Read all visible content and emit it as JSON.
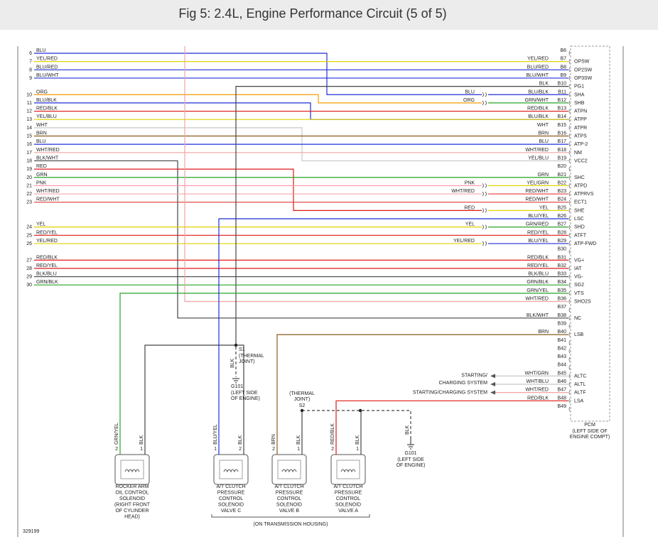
{
  "header": {
    "title": "Fig 5: 2.4L, Engine Performance Circuit (5 of 5)"
  },
  "left_wires": [
    {
      "number": "6",
      "color": "BLU"
    },
    {
      "number": "7",
      "color": "YEL/RED"
    },
    {
      "number": "8",
      "color": "BLU/RED"
    },
    {
      "number": "9",
      "color": "BLU/WHT"
    },
    {
      "number": "10",
      "color": "ORG"
    },
    {
      "number": "11",
      "color": "BLU/BLK"
    },
    {
      "number": "12",
      "color": "RED/BLK"
    },
    {
      "number": "13",
      "color": "YEL/BLU"
    },
    {
      "number": "14",
      "color": "WHT"
    },
    {
      "number": "15",
      "color": "BRN"
    },
    {
      "number": "16",
      "color": "BLU"
    },
    {
      "number": "17",
      "color": "WHT/RED"
    },
    {
      "number": "18",
      "color": "BLK/WHT"
    },
    {
      "number": "19",
      "color": "RED"
    },
    {
      "number": "20",
      "color": "GRN"
    },
    {
      "number": "21",
      "color": "PNK"
    },
    {
      "number": "22",
      "color": "WHT/RED"
    },
    {
      "number": "23",
      "color": "RED/WHT"
    },
    {
      "number": "24",
      "color": "YEL"
    },
    {
      "number": "25",
      "color": "RED/YEL"
    },
    {
      "number": "26",
      "color": "YEL/RED"
    },
    {
      "number": "27",
      "color": "RED/BLK"
    },
    {
      "number": "28",
      "color": "RED/YEL"
    },
    {
      "number": "29",
      "color": "BLK/BLU"
    },
    {
      "number": "30",
      "color": "GRN/BLK"
    }
  ],
  "splice_labels": [
    "BLU",
    "ORG",
    "PNK",
    "WHT/RED",
    "RED",
    "YEL",
    "YEL/RED"
  ],
  "pcm": {
    "name": "PCM",
    "location": [
      "(LEFT SIDE OF",
      "ENGINE COMPT)"
    ],
    "pins": [
      {
        "pin": "B6"
      },
      {
        "pin": "B7",
        "wire": "YEL/RED",
        "function": "OPSW"
      },
      {
        "pin": "B8",
        "wire": "BLU/RED",
        "function": "OP2SW"
      },
      {
        "pin": "B9",
        "wire": "BLU/WHT",
        "function": "OP3SW"
      },
      {
        "pin": "B10",
        "wire": "BLK",
        "function": "PG1"
      },
      {
        "pin": "B11",
        "wire": "BLU/BLK",
        "function": "SHA"
      },
      {
        "pin": "B12",
        "wire": "GRN/WHT",
        "function": "SHB"
      },
      {
        "pin": "B13",
        "wire": "RED/BLK",
        "function": "ATPN"
      },
      {
        "pin": "B14",
        "wire": "BLU/BLK",
        "function": "ATPP"
      },
      {
        "pin": "B15",
        "wire": "WHT",
        "function": "ATPR"
      },
      {
        "pin": "B16",
        "wire": "BRN",
        "function": "ATPS"
      },
      {
        "pin": "B17",
        "wire": "BLU",
        "function": "ATP-2"
      },
      {
        "pin": "B18",
        "wire": "WHT/RED",
        "function": "NM"
      },
      {
        "pin": "B19",
        "wire": "YEL/BLU",
        "function": "VCC2"
      },
      {
        "pin": "B20"
      },
      {
        "pin": "B21",
        "wire": "GRN",
        "function": "SHC"
      },
      {
        "pin": "B22",
        "wire": "YEL/GRN",
        "function": "ATPD"
      },
      {
        "pin": "B23",
        "wire": "RED/WHT",
        "function": "ATPRVS"
      },
      {
        "pin": "B24",
        "wire": "RED/WHT",
        "function": "ECT1"
      },
      {
        "pin": "B25",
        "wire": "YEL",
        "function": "SHE"
      },
      {
        "pin": "B26",
        "wire": "BLU/YEL",
        "function": "LSC"
      },
      {
        "pin": "B27",
        "wire": "GRN/RED",
        "function": "SHD"
      },
      {
        "pin": "B28",
        "wire": "RED/YEL",
        "function": "ATFT"
      },
      {
        "pin": "B29",
        "wire": "BLU/YEL",
        "function": "ATP-FWD"
      },
      {
        "pin": "B30"
      },
      {
        "pin": "B31",
        "wire": "RED/BLK",
        "function": "VG+"
      },
      {
        "pin": "B32",
        "wire": "RED/YEL",
        "function": "IAT"
      },
      {
        "pin": "B33",
        "wire": "BLK/BLU",
        "function": "VG-"
      },
      {
        "pin": "B34",
        "wire": "GRN/BLK",
        "function": "SG2"
      },
      {
        "pin": "B35",
        "wire": "GRN/YEL",
        "function": "VTS"
      },
      {
        "pin": "B36",
        "wire": "WHT/RED",
        "function": "SHO2S"
      },
      {
        "pin": "B37"
      },
      {
        "pin": "B38",
        "wire": "BLK/WHT",
        "function": "NC"
      },
      {
        "pin": "B39"
      },
      {
        "pin": "B40",
        "wire": "BRN",
        "function": "LSB"
      },
      {
        "pin": "B41"
      },
      {
        "pin": "B42"
      },
      {
        "pin": "B43"
      },
      {
        "pin": "B44"
      },
      {
        "pin": "B45",
        "wire": "WHT/GRN",
        "function": "ALTC"
      },
      {
        "pin": "B46",
        "wire": "WHT/BLU",
        "function": "ALTL"
      },
      {
        "pin": "B47",
        "wire": "WHT/RED",
        "function": "ALTF"
      },
      {
        "pin": "B48",
        "wire": "RED/BLK",
        "function": "LSA"
      },
      {
        "pin": "B49"
      }
    ]
  },
  "external": [
    [
      "STARTING/",
      "CHARGING SYSTEM"
    ],
    [
      "STARTING/CHARGING SYSTEM"
    ]
  ],
  "s1": {
    "name": "S1",
    "note": [
      "(THERMAL",
      "JOINT)"
    ],
    "ground_wire": "BLK",
    "ground": "G101",
    "ground_location": [
      "(LEFT SIDE",
      "OF ENGINE)"
    ]
  },
  "s2": {
    "name": "S2",
    "note": [
      "(THERMAL",
      "JOINT)"
    ],
    "ground_wire": "BLK",
    "ground": "G101",
    "ground_location": [
      "(LEFT SIDE",
      "OF ENGINE)"
    ]
  },
  "components": [
    {
      "label": [
        "ROCKER ARM",
        "OIL CONTROL",
        "SOLENOID"
      ],
      "location": [
        "(RIGHT FRONT",
        "OF CYLINDER",
        "HEAD)"
      ],
      "wires": [
        {
          "pin": "2",
          "color": "GRN/YEL"
        },
        {
          "pin": "1",
          "color": "BLK"
        }
      ]
    },
    {
      "label": [
        "A/T CLUTCH",
        "PRESSURE",
        "CONTROL",
        "SOLENOID",
        "VALVE C"
      ],
      "wires": [
        {
          "pin": "1",
          "color": "BLU/YEL"
        },
        {
          "pin": "2",
          "color": "BLK"
        }
      ]
    },
    {
      "label": [
        "A/T CLUTCH",
        "PRESSURE",
        "CONTROL",
        "SOLENOID",
        "VALVE B"
      ],
      "wires": [
        {
          "pin": "2",
          "color": "BRN"
        },
        {
          "pin": "1",
          "color": "BLK"
        }
      ]
    },
    {
      "label": [
        "A/T CLUTCH",
        "PRESSURE",
        "CONTROL",
        "SOLENOID",
        "VALVE A"
      ],
      "wires": [
        {
          "pin": "2",
          "color": "RED/BLK"
        },
        {
          "pin": "1",
          "color": "BLK"
        }
      ]
    }
  ],
  "housing_note": "(ON TRANSMISSION HOUSING)",
  "figure_id": "329199"
}
